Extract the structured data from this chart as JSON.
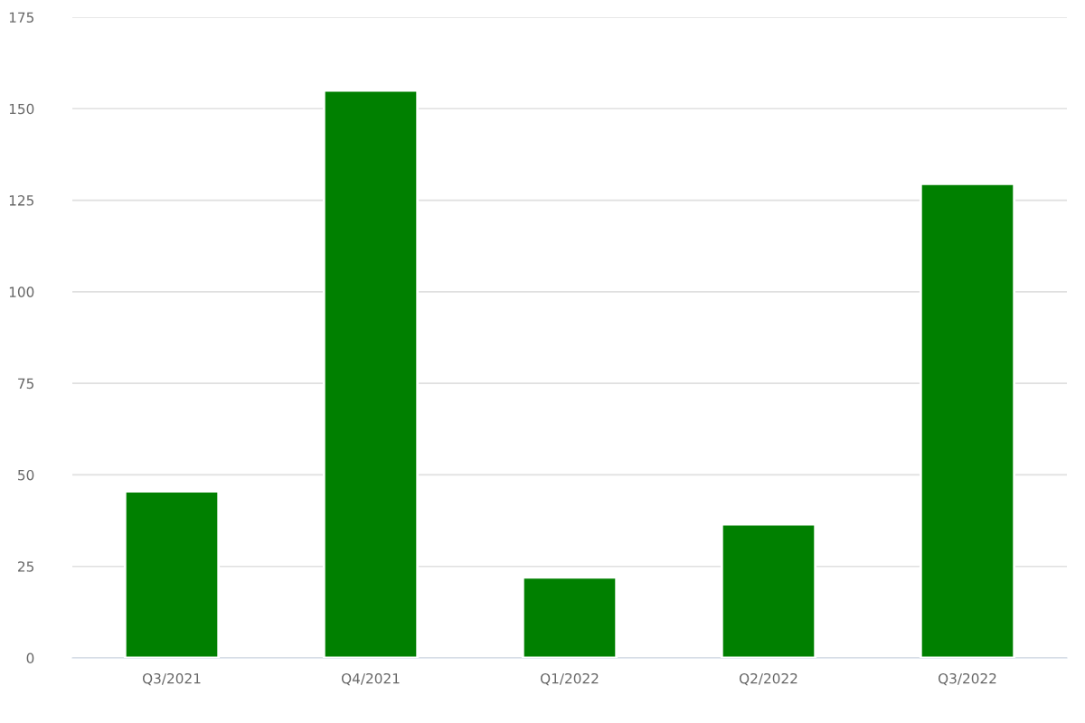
{
  "chart_data": {
    "type": "bar",
    "categories": [
      "Q3/2021",
      "Q4/2021",
      "Q1/2022",
      "Q2/2022",
      "Q3/2022"
    ],
    "values": [
      45.5,
      155,
      22,
      36.5,
      129.5
    ],
    "color": "#008000",
    "ylim": [
      0,
      175
    ],
    "yticks": [
      0,
      25,
      50,
      75,
      100,
      125,
      150,
      175
    ],
    "grid": "y",
    "legend": false
  }
}
